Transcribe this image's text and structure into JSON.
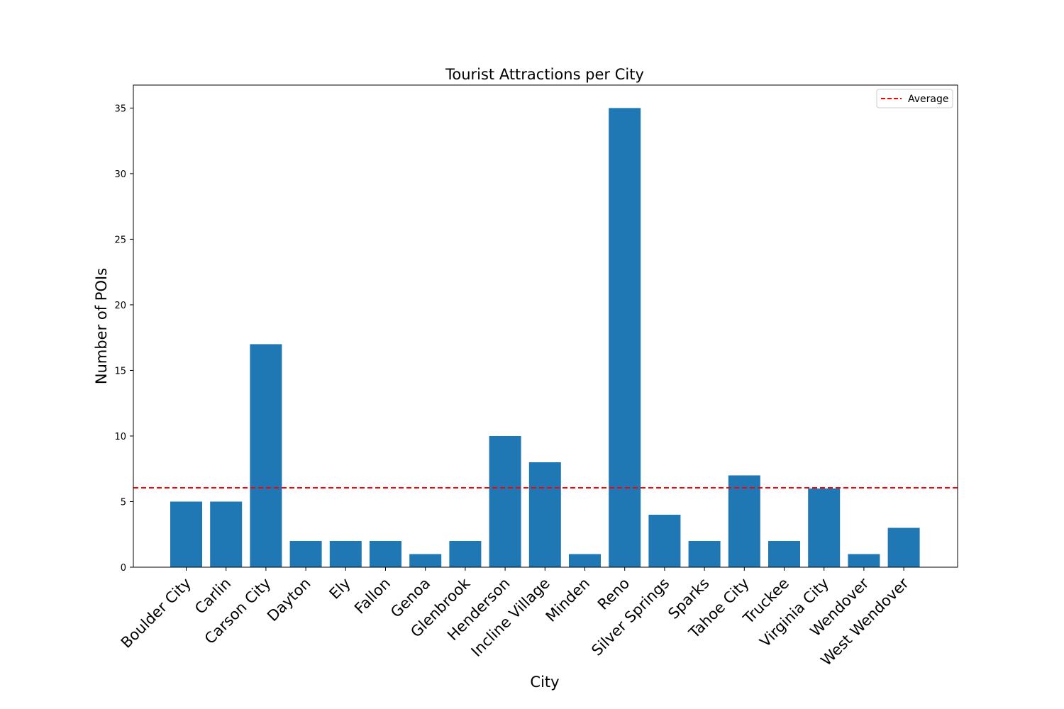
{
  "chart_data": {
    "type": "bar",
    "title": "Tourist Attractions per City",
    "xlabel": "City",
    "ylabel": "Number of POIs",
    "categories": [
      "Boulder City",
      "Carlin",
      "Carson City",
      "Dayton",
      "Ely",
      "Fallon",
      "Genoa",
      "Glenbrook",
      "Henderson",
      "Incline Village",
      "Minden",
      "Reno",
      "Silver Springs",
      "Sparks",
      "Tahoe City",
      "Truckee",
      "Virginia City",
      "Wendover",
      "West Wendover"
    ],
    "values": [
      5,
      5,
      17,
      2,
      2,
      2,
      1,
      2,
      10,
      8,
      1,
      35,
      4,
      2,
      7,
      2,
      6,
      1,
      3
    ],
    "ylim": [
      0,
      36.75
    ],
    "yticks": [
      0,
      5,
      10,
      15,
      20,
      25,
      30,
      35
    ],
    "average": 6.05,
    "legend": {
      "position": "top-right",
      "entries": [
        {
          "label": "Average",
          "style": "dashed-line"
        }
      ]
    },
    "grid": false,
    "colors": {
      "bar": "#1f77b4",
      "average": "#ff0000",
      "axis": "#000000"
    }
  }
}
